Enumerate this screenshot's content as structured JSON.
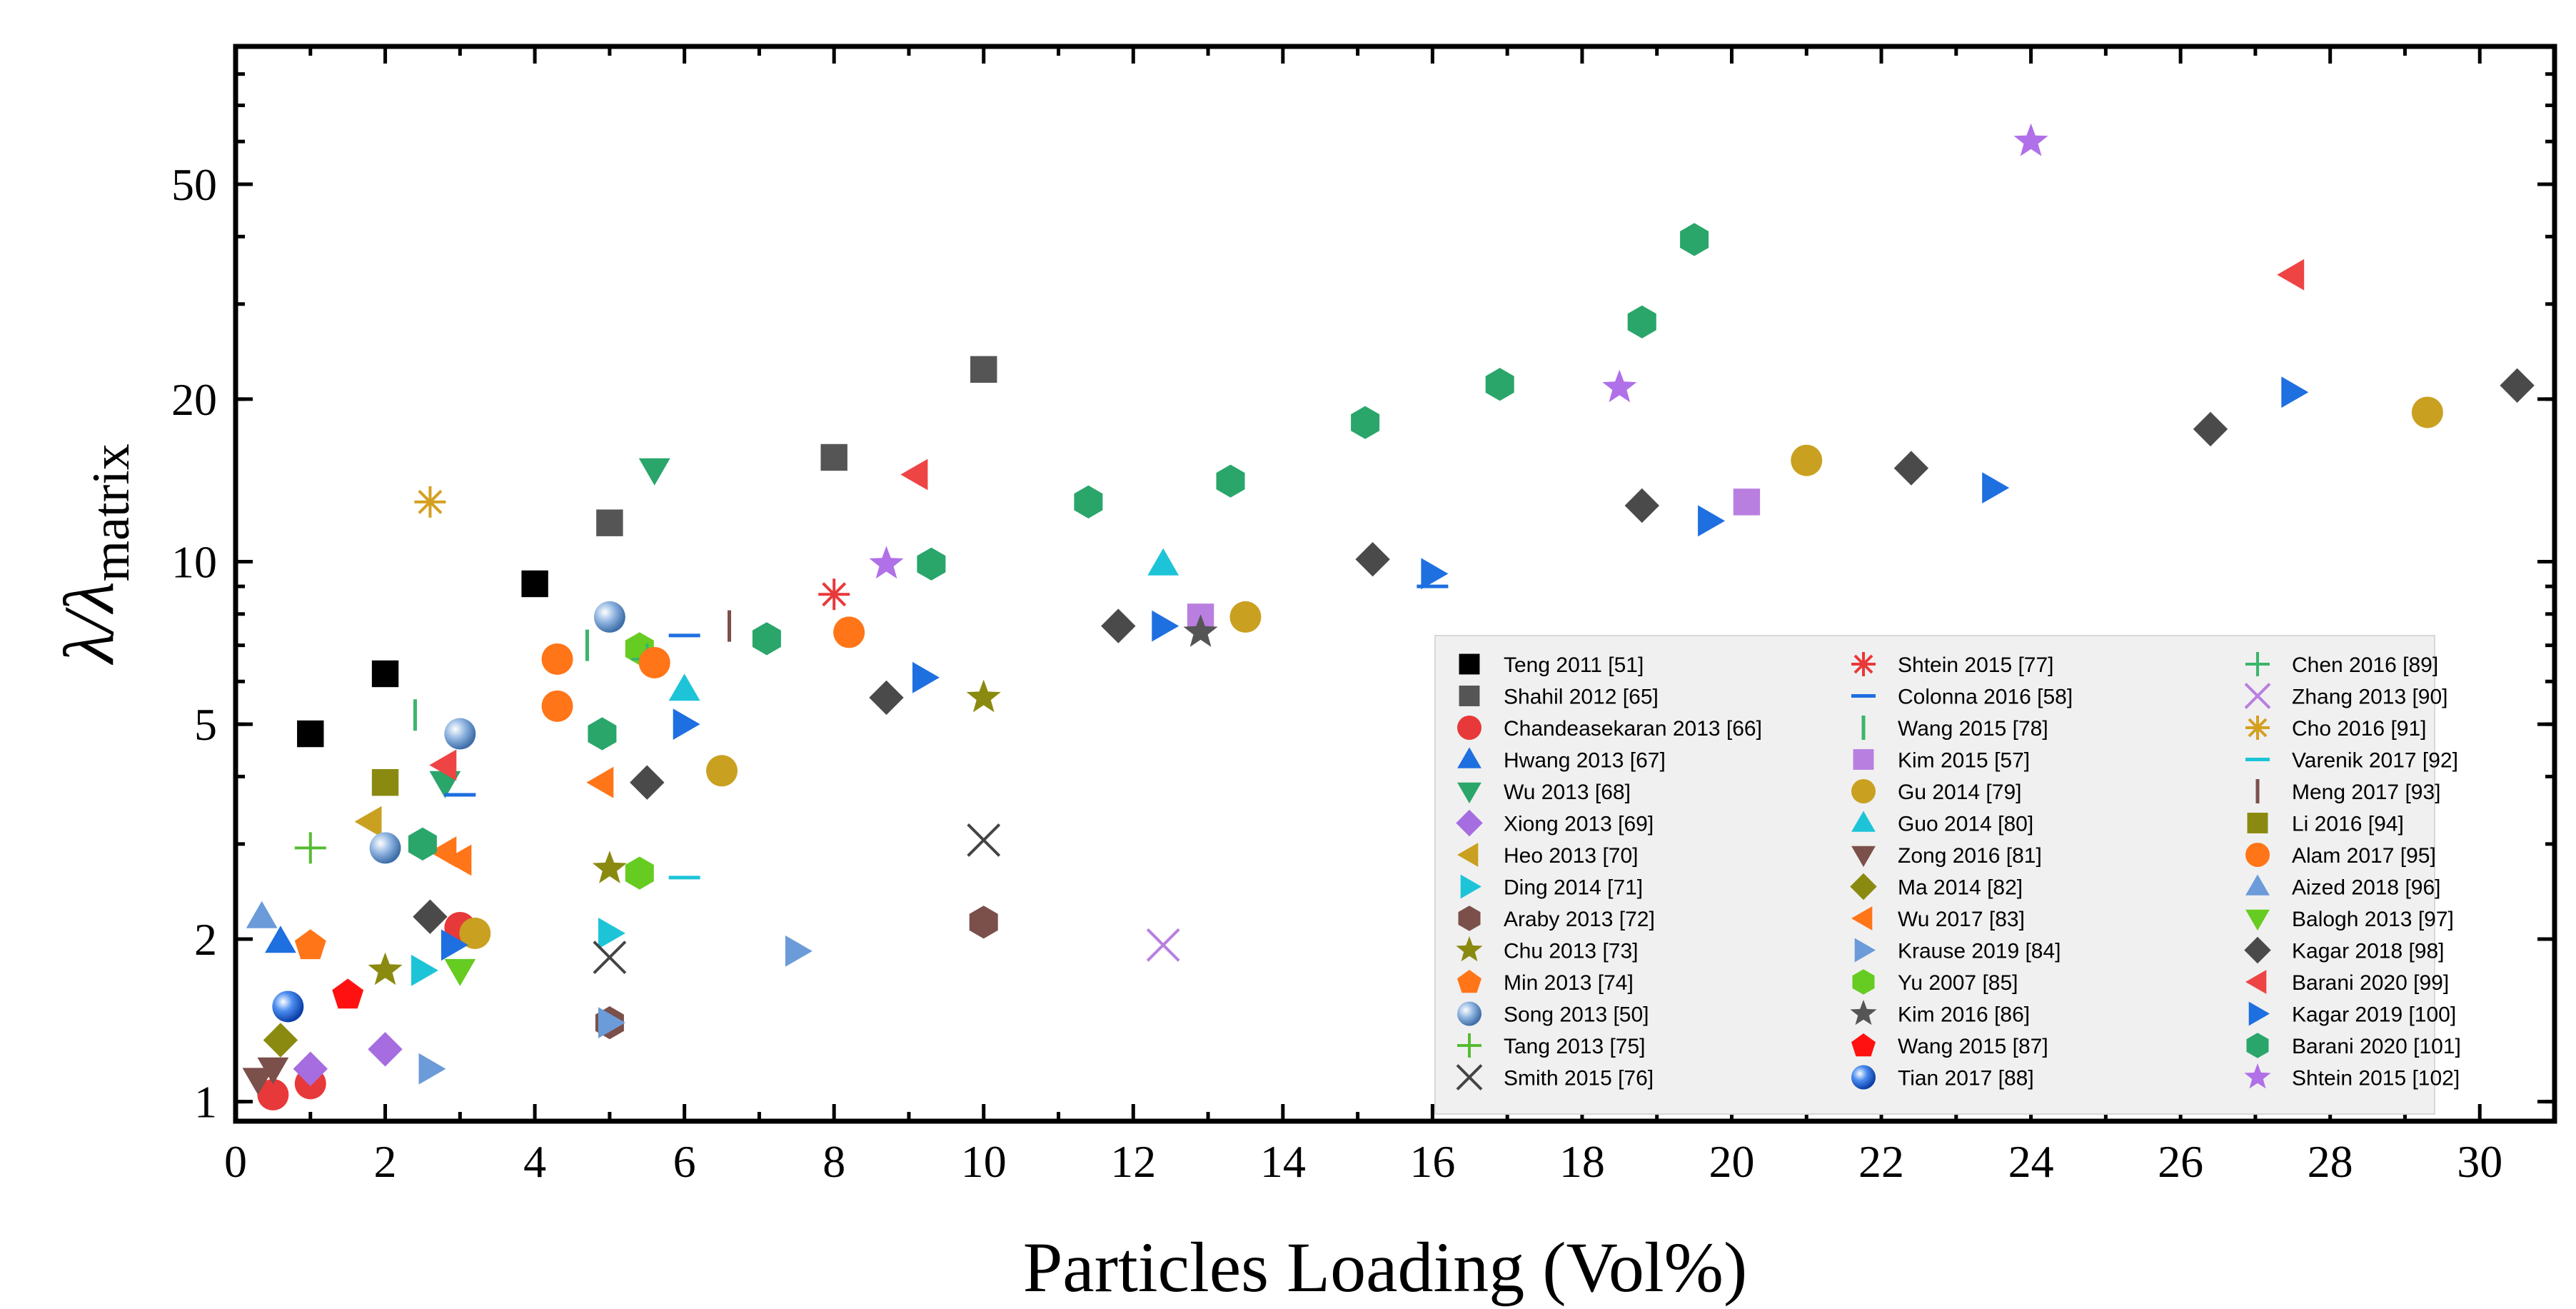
{
  "chart_data": {
    "type": "scatter",
    "xlabel": "Particles Loading (Vol%)",
    "ylabel_main": "λ/λ",
    "ylabel_sub": "matrix",
    "xlim": [
      0,
      31
    ],
    "ylim": [
      0.92,
      90
    ],
    "yscale": "log",
    "xticks": [
      "0",
      "2",
      "4",
      "6",
      "8",
      "10",
      "12",
      "14",
      "16",
      "18",
      "20",
      "22",
      "24",
      "26",
      "28",
      "30"
    ],
    "yticks": [
      {
        "v": 1,
        "label": "1"
      },
      {
        "v": 2,
        "label": "2"
      },
      {
        "v": 5,
        "label": "5"
      },
      {
        "v": 10,
        "label": "10"
      },
      {
        "v": 20,
        "label": "20"
      },
      {
        "v": 50,
        "label": "50"
      }
    ],
    "legend_placement": "bottom-right",
    "series": [
      {
        "name": "Teng 2011 [51]",
        "marker": "square",
        "color": "#000000",
        "points": [
          [
            1,
            4.8
          ],
          [
            2,
            6.2
          ],
          [
            4,
            9.1
          ]
        ]
      },
      {
        "name": "Shahil 2012 [65]",
        "marker": "square",
        "color": "#555555",
        "points": [
          [
            5,
            11.8
          ],
          [
            8,
            15.6
          ],
          [
            10,
            22.7
          ]
        ]
      },
      {
        "name": "Chandeasekaran 2013 [66]",
        "marker": "circle",
        "color": "#e8393a",
        "points": [
          [
            0.5,
            1.03
          ],
          [
            1,
            1.08
          ],
          [
            3,
            2.1
          ]
        ]
      },
      {
        "name": "Hwang 2013 [67]",
        "marker": "triangle-up",
        "color": "#1e6fe0",
        "points": [
          [
            0.6,
            1.98
          ]
        ]
      },
      {
        "name": "Wu 2013 [68]",
        "marker": "triangle-down",
        "color": "#2aa66a",
        "points": [
          [
            2.8,
            3.9
          ],
          [
            5.6,
            14.8
          ]
        ]
      },
      {
        "name": "Xiong 2013 [69]",
        "marker": "diamond",
        "color": "#a56de0",
        "points": [
          [
            1,
            1.15
          ],
          [
            2,
            1.25
          ]
        ]
      },
      {
        "name": "Heo 2013 [70]",
        "marker": "triangle-left",
        "color": "#c9a020",
        "points": [
          [
            1.8,
            3.3
          ]
        ]
      },
      {
        "name": "Ding 2014 [71]",
        "marker": "triangle-right",
        "color": "#1dc4d8",
        "points": [
          [
            2.5,
            1.75
          ],
          [
            5,
            2.05
          ]
        ]
      },
      {
        "name": "Araby 2013 [72]",
        "marker": "hexagon",
        "color": "#7b4f4a",
        "points": [
          [
            10,
            2.15
          ],
          [
            5,
            1.4
          ]
        ]
      },
      {
        "name": "Chu 2013 [73]",
        "marker": "star",
        "color": "#8a8a10",
        "points": [
          [
            2,
            1.75
          ],
          [
            5,
            2.7
          ],
          [
            10,
            5.6
          ]
        ]
      },
      {
        "name": "Min 2013 [74]",
        "marker": "pentagon",
        "color": "#ff7518",
        "points": [
          [
            1,
            1.95
          ]
        ]
      },
      {
        "name": "Song 2013 [50]",
        "marker": "sphere",
        "color": "#7fa8d8",
        "points": [
          [
            2,
            2.95
          ],
          [
            3,
            4.8
          ],
          [
            5,
            7.9
          ]
        ]
      },
      {
        "name": "Tang 2013 [75]",
        "marker": "plus",
        "color": "#55bb33",
        "points": [
          [
            1,
            2.95
          ]
        ]
      },
      {
        "name": "Smith 2015 [76]",
        "marker": "x",
        "color": "#444444",
        "points": [
          [
            5,
            1.85
          ],
          [
            10,
            3.05
          ]
        ]
      },
      {
        "name": "Shtein 2015 [77]",
        "marker": "asterisk",
        "color": "#e8393a",
        "points": [
          [
            8,
            8.7
          ]
        ]
      },
      {
        "name": "Colonna 2016 [58]",
        "marker": "hline",
        "color": "#1e6fe0",
        "points": [
          [
            3,
            3.7
          ],
          [
            6,
            7.3
          ],
          [
            16,
            9
          ]
        ]
      },
      {
        "name": "Wang 2015 [78]",
        "marker": "vline",
        "color": "#3bb56a",
        "points": [
          [
            2.4,
            5.2
          ],
          [
            4.7,
            7
          ]
        ]
      },
      {
        "name": "Kim 2015 [57]",
        "marker": "square",
        "color": "#b87fe0",
        "points": [
          [
            12.9,
            7.9
          ],
          [
            20.2,
            12.9
          ]
        ]
      },
      {
        "name": "Gu 2014 [79]",
        "marker": "circle",
        "color": "#c9a020",
        "points": [
          [
            3.2,
            2.05
          ],
          [
            6.5,
            4.1
          ],
          [
            13.5,
            7.9
          ],
          [
            21,
            15.4
          ],
          [
            29.3,
            18.9
          ]
        ]
      },
      {
        "name": "Guo 2014 [80]",
        "marker": "triangle-up",
        "color": "#1dc4d8",
        "points": [
          [
            6,
            5.8
          ],
          [
            12.4,
            9.9
          ]
        ]
      },
      {
        "name": "Zong 2016 [81]",
        "marker": "triangle-down",
        "color": "#7b4f4a",
        "points": [
          [
            0.3,
            1.1
          ],
          [
            0.5,
            1.15
          ]
        ]
      },
      {
        "name": "Ma 2014 [82]",
        "marker": "diamond",
        "color": "#8a8a10",
        "points": [
          [
            0.6,
            1.3
          ]
        ]
      },
      {
        "name": "Wu 2017 [83]",
        "marker": "triangle-left",
        "color": "#ff7518",
        "points": [
          [
            4.9,
            3.9
          ],
          [
            2.8,
            2.9
          ],
          [
            3,
            2.8
          ]
        ]
      },
      {
        "name": "Krause 2019 [84]",
        "marker": "triangle-right",
        "color": "#6b9bd8",
        "points": [
          [
            2.6,
            1.15
          ],
          [
            5,
            1.4
          ],
          [
            7.5,
            1.9
          ]
        ]
      },
      {
        "name": "Yu 2007 [85]",
        "marker": "hexagon",
        "color": "#66cc22",
        "points": [
          [
            5.4,
            2.65
          ],
          [
            5.4,
            6.9
          ]
        ]
      },
      {
        "name": "Kim 2016 [86]",
        "marker": "star",
        "color": "#555555",
        "points": [
          [
            12.9,
            7.4
          ]
        ]
      },
      {
        "name": "Wang 2015 [87]",
        "marker": "pentagon",
        "color": "#ff1111",
        "points": [
          [
            1.5,
            1.58
          ]
        ]
      },
      {
        "name": "Tian 2017 [88]",
        "marker": "sphere",
        "color": "#1e6fe0",
        "points": [
          [
            0.7,
            1.5
          ]
        ]
      },
      {
        "name": "Chen 2016 [89]",
        "marker": "plus",
        "color": "#3bb56a",
        "points": [
          [
            5.5,
            6.6
          ]
        ]
      },
      {
        "name": "Zhang 2013 [90]",
        "marker": "x",
        "color": "#b87fe0",
        "points": [
          [
            12.4,
            1.95
          ]
        ]
      },
      {
        "name": "Cho 2016 [91]",
        "marker": "asterisk",
        "color": "#d4a020",
        "points": [
          [
            2.6,
            12.9
          ]
        ]
      },
      {
        "name": "Varenik 2017 [92]",
        "marker": "hline",
        "color": "#1dc4d8",
        "points": [
          [
            6,
            2.6
          ]
        ]
      },
      {
        "name": "Meng 2017 [93]",
        "marker": "vline",
        "color": "#7b4f4a",
        "points": [
          [
            6.6,
            7.6
          ]
        ]
      },
      {
        "name": "Li 2016 [94]",
        "marker": "square",
        "color": "#8a8a10",
        "points": [
          [
            2,
            3.9
          ]
        ]
      },
      {
        "name": "Alam 2017 [95]",
        "marker": "circle",
        "color": "#ff7518",
        "points": [
          [
            4.3,
            6.6
          ],
          [
            4.3,
            5.4
          ],
          [
            5.6,
            6.5
          ],
          [
            8.2,
            7.4
          ]
        ]
      },
      {
        "name": "Aized 2018 [96]",
        "marker": "triangle-up",
        "color": "#6b9bd8",
        "points": [
          [
            0.35,
            2.2
          ]
        ]
      },
      {
        "name": "Balogh 2013 [97]",
        "marker": "triangle-down",
        "color": "#66cc22",
        "points": [
          [
            3,
            1.75
          ]
        ]
      },
      {
        "name": "Kagar 2018 [98]",
        "marker": "diamond",
        "color": "#4a4a4a",
        "points": [
          [
            2.6,
            2.2
          ],
          [
            5.5,
            3.9
          ],
          [
            8.7,
            5.6
          ],
          [
            11.8,
            7.6
          ],
          [
            15.2,
            10.1
          ],
          [
            18.8,
            12.7
          ],
          [
            22.4,
            14.9
          ],
          [
            26.4,
            17.6
          ],
          [
            30.5,
            21.2
          ]
        ]
      },
      {
        "name": "Barani 2020 [99]",
        "marker": "triangle-left",
        "color": "#ee4444",
        "points": [
          [
            2.8,
            4.2
          ],
          [
            9.1,
            14.5
          ],
          [
            27.5,
            34
          ]
        ]
      },
      {
        "name": "Kagar 2019 [100]",
        "marker": "triangle-right",
        "color": "#1e6fe0",
        "points": [
          [
            2.9,
            1.95
          ],
          [
            6,
            5
          ],
          [
            9.2,
            6.1
          ],
          [
            12.4,
            7.6
          ],
          [
            16,
            9.5
          ],
          [
            19.7,
            11.9
          ],
          [
            23.5,
            13.7
          ],
          [
            27.5,
            20.6
          ]
        ]
      },
      {
        "name": "Barani 2020 [101]",
        "marker": "hexagon",
        "color": "#2aa66a",
        "points": [
          [
            2.5,
            3
          ],
          [
            4.9,
            4.8
          ],
          [
            7.1,
            7.2
          ],
          [
            9.3,
            9.9
          ],
          [
            11.4,
            12.9
          ],
          [
            13.3,
            14.1
          ],
          [
            15.1,
            18.1
          ],
          [
            16.9,
            21.3
          ],
          [
            18.8,
            27.8
          ],
          [
            19.5,
            39.5
          ]
        ]
      },
      {
        "name": "Shtein 2015 [102]",
        "marker": "star",
        "color": "#b070e8",
        "points": [
          [
            8.7,
            9.9
          ],
          [
            18.5,
            21
          ],
          [
            24,
            60
          ]
        ]
      }
    ]
  }
}
